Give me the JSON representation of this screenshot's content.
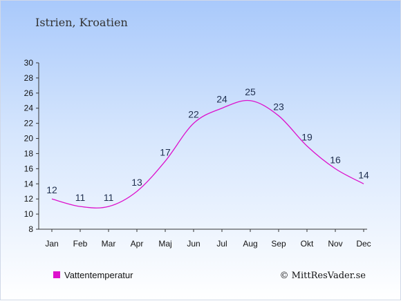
{
  "chart_data": {
    "type": "line",
    "title": "Istrien, Kroatien",
    "categories": [
      "Jan",
      "Feb",
      "Mar",
      "Apr",
      "Maj",
      "Jun",
      "Jul",
      "Aug",
      "Sep",
      "Okt",
      "Nov",
      "Dec"
    ],
    "series": [
      {
        "name": "Vattentemperatur",
        "values": [
          12,
          11,
          11,
          13,
          17,
          22,
          24,
          25,
          23,
          19,
          16,
          14
        ],
        "color": "#dd11cc"
      }
    ],
    "ylim": [
      8,
      30
    ],
    "yticks": [
      8,
      10,
      12,
      14,
      16,
      18,
      20,
      22,
      24,
      26,
      28,
      30
    ],
    "grid": false,
    "legend_position": "bottom-left"
  },
  "credit": "© MittResVader.se"
}
